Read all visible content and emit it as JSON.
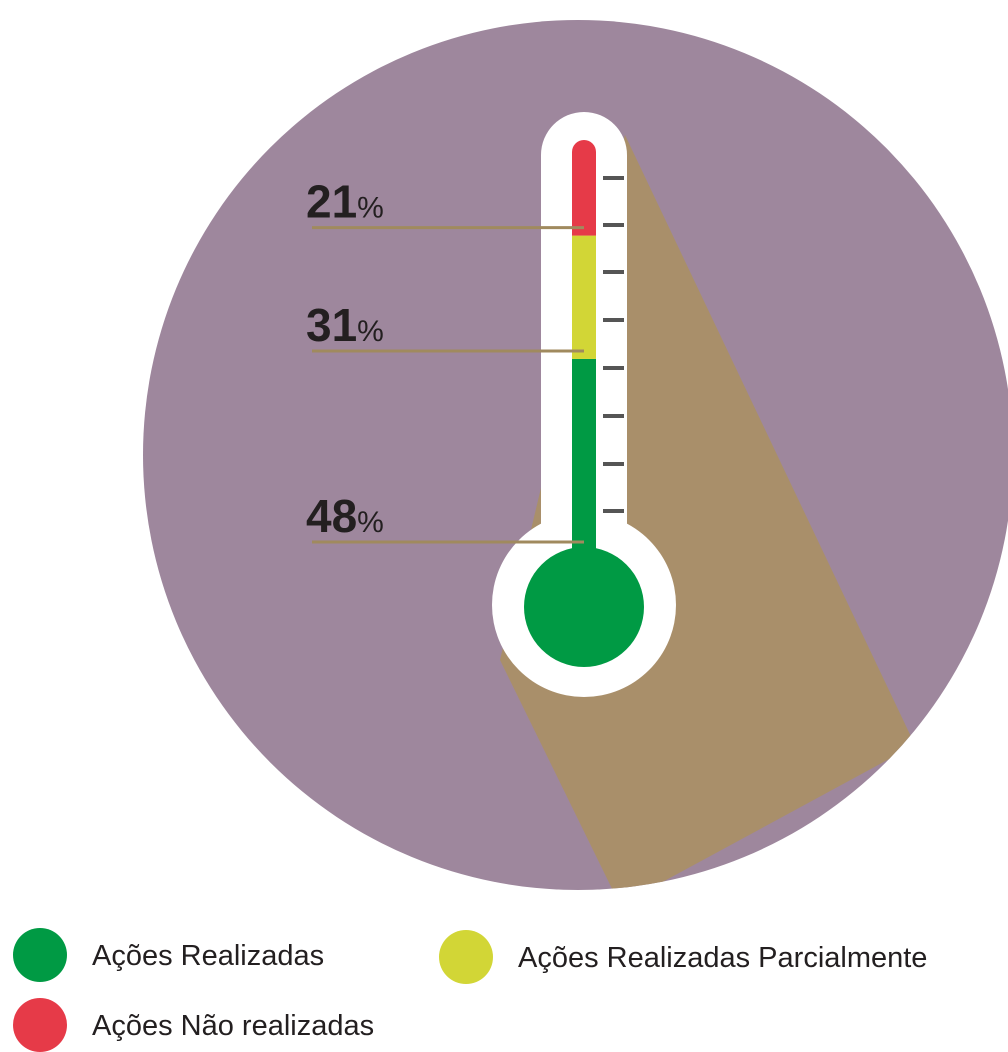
{
  "chart_data": {
    "type": "thermometer",
    "series": [
      {
        "name": "Ações Realizadas",
        "color": "#009a44",
        "values": [
          48
        ],
        "value_labels": [
          "48%"
        ]
      },
      {
        "name": "Ações Realizadas Parcialmente",
        "color": "#d2d636",
        "values": [
          31
        ],
        "value_labels": [
          "31%"
        ]
      },
      {
        "name": "Ações Não realizadas",
        "color": "#e63a48",
        "values": [
          21
        ],
        "value_labels": [
          "21%"
        ]
      }
    ],
    "ylim": [
      0,
      100
    ]
  }
}
